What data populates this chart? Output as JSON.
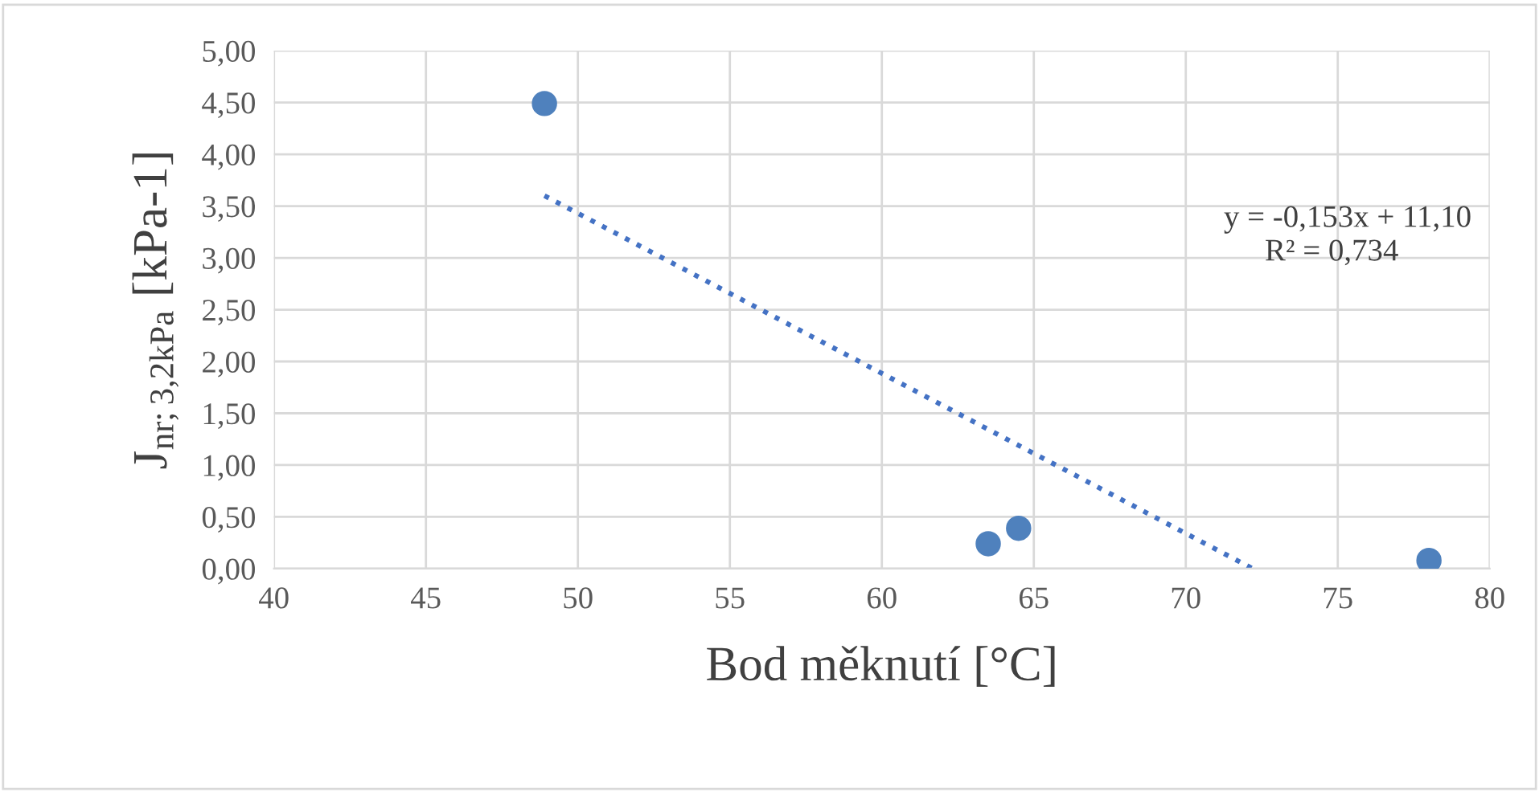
{
  "chart_data": {
    "type": "scatter",
    "xlabel": "Bod měknutí [°C]",
    "ylabel": "J$_{nr;3,2kPa}$ [kPa-1]",
    "series": [
      {
        "marker": "circle",
        "color": "#4f81bd",
        "x": [
          48.9,
          63.5,
          64.5,
          78.0
        ],
        "values": [
          4.49,
          0.24,
          0.39,
          0.08
        ]
      },
      {
        "type": "line",
        "marker": "none",
        "color": "#4472c4",
        "line_style": "dotted",
        "x": [
          48.9,
          72.2
        ],
        "values": [
          3.6,
          0.0
        ]
      }
    ],
    "xlim": [
      40,
      80
    ],
    "xticks": [
      40,
      45,
      50,
      55,
      60,
      65,
      70,
      75,
      80
    ],
    "ylim": [
      0,
      5
    ],
    "yticks": [
      {
        "value": 0,
        "label": "0,00"
      },
      {
        "value": 0.5,
        "label": "0,50"
      },
      {
        "value": 1,
        "label": "1,00"
      },
      {
        "value": 1.5,
        "label": "1,50"
      },
      {
        "value": 2,
        "label": "2,00"
      },
      {
        "value": 2.5,
        "label": "2,50"
      },
      {
        "value": 3,
        "label": "3,00"
      },
      {
        "value": 3.5,
        "label": "3,50"
      },
      {
        "value": 4,
        "label": "4,00"
      },
      {
        "value": 4.5,
        "label": "4,50"
      },
      {
        "value": 5,
        "label": "5,00"
      }
    ],
    "grid": true,
    "annotations": [
      "y = -0,153x + 11,10",
      "R² = 0,734"
    ]
  }
}
